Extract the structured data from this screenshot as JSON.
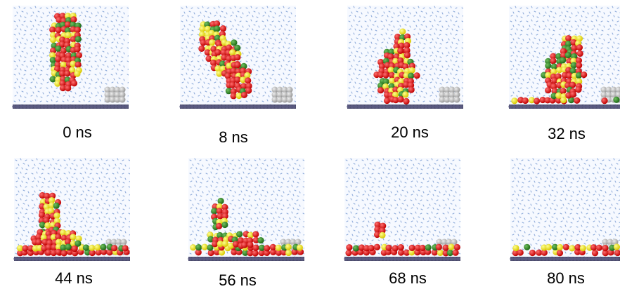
{
  "panels": [
    {
      "label": "0 ns"
    },
    {
      "label": "8 ns"
    },
    {
      "label": "20 ns"
    },
    {
      "label": "32 ns"
    },
    {
      "label": "44 ns"
    },
    {
      "label": "56 ns"
    },
    {
      "label": "68 ns"
    },
    {
      "label": "80 ns"
    }
  ]
}
